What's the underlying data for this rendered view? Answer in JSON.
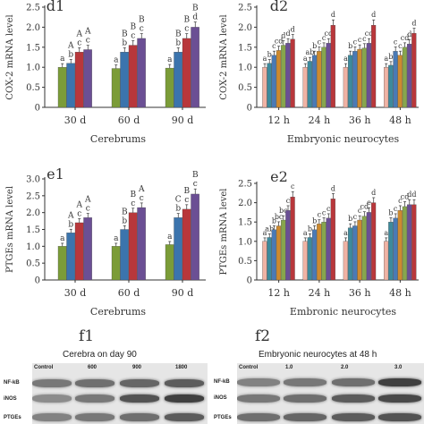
{
  "chart_data": [
    {
      "panel": "d1",
      "type": "bar",
      "ylabel": "COX-2 mRNA level",
      "xlabel": "Cerebrums",
      "ylim": [
        0,
        2.5
      ],
      "yticks": [
        0,
        0.5,
        1.0,
        1.5,
        2.0,
        2.5
      ],
      "categories": [
        "30 d",
        "60 d",
        "90 d"
      ],
      "values": [
        [
          1.0,
          1.1,
          1.38,
          1.44
        ],
        [
          0.97,
          1.38,
          1.55,
          1.72
        ],
        [
          0.98,
          1.38,
          1.72,
          2.0
        ]
      ],
      "upper_letters": [
        [
          "",
          "A",
          "A",
          "A"
        ],
        [
          "",
          "B",
          "B",
          "B"
        ],
        [
          "",
          "B",
          "B",
          "B"
        ]
      ],
      "lower_letters": [
        [
          "a",
          "b",
          "c",
          "c"
        ],
        [
          "a",
          "b",
          "c",
          "c"
        ],
        [
          "a",
          "b",
          "c",
          "d"
        ]
      ]
    },
    {
      "panel": "d2",
      "type": "bar",
      "ylabel": "COX-2 mRNA level",
      "xlabel": "Embryonic neurocytes",
      "ylim": [
        0,
        2.5
      ],
      "yticks": [
        0,
        0.5,
        1.0,
        1.5,
        2.0,
        2.5
      ],
      "categories": [
        "12 h",
        "24 h",
        "36 h",
        "48 h"
      ],
      "values": [
        [
          1.0,
          1.1,
          1.3,
          1.42,
          1.55,
          1.6,
          1.7
        ],
        [
          1.0,
          1.15,
          1.3,
          1.4,
          1.5,
          1.6,
          2.05
        ],
        [
          1.0,
          1.3,
          1.4,
          1.45,
          1.48,
          1.6,
          2.05
        ],
        [
          1.0,
          1.05,
          1.4,
          1.3,
          1.5,
          1.58,
          1.85
        ]
      ],
      "letters": [
        [
          "a",
          "b",
          "c",
          "cd",
          "d",
          "d",
          "d"
        ],
        [
          "a",
          "ab",
          "b",
          "c",
          "c",
          "cd",
          "d"
        ],
        [
          "a",
          "b",
          "c",
          "c",
          "c",
          "cd",
          "d"
        ],
        [
          "a",
          "b",
          "c",
          "c",
          "cd",
          "d",
          "d"
        ]
      ]
    },
    {
      "panel": "e1",
      "type": "bar",
      "ylabel": "PTGEs mRNA level",
      "xlabel": "Cerebrums",
      "ylim": [
        0,
        3.0
      ],
      "yticks": [
        0,
        0.5,
        1.0,
        1.5,
        2.0,
        2.5,
        3.0
      ],
      "categories": [
        "30 d",
        "60 d",
        "90 d"
      ],
      "values": [
        [
          1.0,
          1.4,
          1.7,
          1.85
        ],
        [
          1.0,
          1.5,
          2.0,
          2.15
        ],
        [
          1.05,
          1.85,
          2.1,
          2.55
        ]
      ],
      "upper_letters": [
        [
          "",
          "A",
          "A",
          "A"
        ],
        [
          "",
          "B",
          "B",
          "A"
        ],
        [
          "",
          "C",
          "B",
          "B"
        ]
      ],
      "lower_letters": [
        [
          "a",
          "b",
          "c",
          "c"
        ],
        [
          "a",
          "b",
          "c",
          "c"
        ],
        [
          "a",
          "b",
          "c",
          "c"
        ]
      ]
    },
    {
      "panel": "e2",
      "type": "bar",
      "ylabel": "PTGEs mRNA level",
      "xlabel": "Embronic neurocytes",
      "ylim": [
        0,
        2.5
      ],
      "yticks": [
        0,
        0.5,
        1.0,
        1.5,
        2.0,
        2.5
      ],
      "categories": [
        "12 h",
        "24 h",
        "36 h",
        "48 h"
      ],
      "values": [
        [
          1.0,
          1.1,
          1.3,
          1.4,
          1.55,
          1.8,
          2.15
        ],
        [
          1.0,
          1.1,
          1.3,
          1.45,
          1.5,
          1.6,
          2.1
        ],
        [
          1.0,
          1.35,
          1.4,
          1.55,
          1.65,
          1.75,
          2.0
        ],
        [
          1.0,
          1.5,
          1.6,
          1.8,
          1.9,
          1.95,
          1.95
        ]
      ],
      "letters": [
        [
          "a",
          "ab",
          "b",
          "bc",
          "bc",
          "c",
          "c"
        ],
        [
          "a",
          "b",
          "b",
          "c",
          "c",
          "c",
          "d"
        ],
        [
          "a",
          "b",
          "c",
          "c",
          "cd",
          "e",
          "d"
        ],
        [
          "a",
          "b",
          "c",
          "c",
          "cd",
          "d",
          "d"
        ]
      ]
    }
  ],
  "colors": {
    "cerebrum_bars": [
      "#7b9c38",
      "#3b74ad",
      "#b8373b",
      "#6b4f94"
    ],
    "neuro_bars": [
      "#f0b3a4",
      "#3d8a9c",
      "#4a7ab5",
      "#cd8a2f",
      "#87a64d",
      "#6a4f94",
      "#b8373b"
    ],
    "axis": "#333333"
  },
  "blots": {
    "f1": {
      "label": "f1",
      "title": "Cerebra on day 90",
      "lanes": [
        "Control",
        "600",
        "900",
        "1800"
      ],
      "rows": [
        "NF-kB",
        "iNOS",
        "PTGEs"
      ],
      "intensity": [
        [
          0.55,
          0.6,
          0.65,
          0.7
        ],
        [
          0.45,
          0.55,
          0.75,
          0.85
        ],
        [
          0.5,
          0.55,
          0.6,
          0.7
        ]
      ]
    },
    "f2": {
      "label": "f2",
      "title": "Embryonic neurocytes at 48 h",
      "lanes": [
        "Control",
        "1.0",
        "2.0",
        "3.0"
      ],
      "rows": [
        "NF-kB",
        "iNOS",
        "PTGEs"
      ],
      "intensity": [
        [
          0.5,
          0.55,
          0.6,
          0.85
        ],
        [
          0.55,
          0.6,
          0.7,
          0.8
        ],
        [
          0.6,
          0.65,
          0.7,
          0.75
        ]
      ]
    }
  }
}
